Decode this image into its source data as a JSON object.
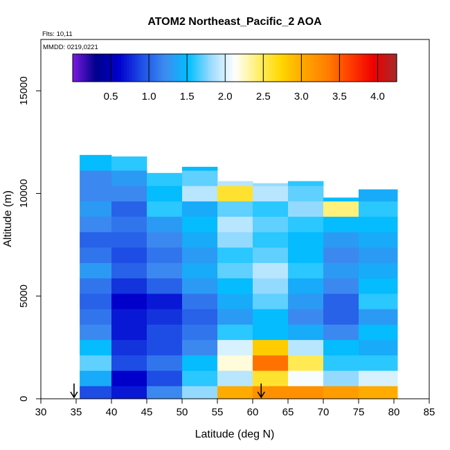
{
  "chart_data": {
    "type": "heatmap",
    "title": "ATOM2 Northeast_Pacific_2 AOA",
    "annotations": {
      "flights": "Flts: 10,11",
      "dates": "MMDD: 0219,0221"
    },
    "xlabel": "Latitude (deg N)",
    "ylabel": "Altitude (m)",
    "xlim": [
      30,
      85
    ],
    "ylim": [
      0,
      17500
    ],
    "x_ticks": [
      30,
      35,
      40,
      45,
      50,
      55,
      60,
      65,
      70,
      75,
      80,
      85
    ],
    "y_ticks": [
      0,
      5000,
      10000,
      15000
    ],
    "colorbar": {
      "range": [
        0,
        4.25
      ],
      "ticks": [
        0.5,
        1.0,
        1.5,
        2.0,
        2.5,
        3.0,
        3.5,
        4.0
      ],
      "tick_labels": [
        "0.5",
        "1.0",
        "1.5",
        "2.0",
        "2.5",
        "3.0",
        "3.5",
        "4.0"
      ],
      "colors": [
        "#7a1be0",
        "#00008b",
        "#0000cd",
        "#1e50e6",
        "#3c8cf0",
        "#00bfff",
        "#9fdcff",
        "#ffffff",
        "#fff06e",
        "#ffd700",
        "#ffa500",
        "#ff7f00",
        "#ff3c00",
        "#ee0000",
        "#a52a2a"
      ]
    },
    "bins": {
      "lat_edges": [
        35.5,
        40,
        45,
        50,
        55,
        60,
        65,
        70,
        75,
        80.5
      ],
      "alt_centers": [
        250,
        1000,
        1750,
        2500,
        3250,
        4000,
        4750,
        5500,
        6250,
        7000,
        7750,
        8500,
        9250,
        10000,
        10750,
        11500
      ],
      "top_altitude_by_lat_bin": [
        12000,
        11800,
        11000,
        11300,
        10600,
        10500,
        10600,
        9800,
        10200
      ],
      "aoa_values": [
        [
          0.9,
          0.7,
          1.2,
          1.8,
          3.0,
          3.2,
          3.2,
          3.1,
          3.0
        ],
        [
          1.4,
          0.6,
          0.9,
          1.6,
          1.9,
          2.6,
          2.1,
          1.8,
          2.0
        ],
        [
          1.7,
          0.9,
          1.1,
          1.5,
          2.2,
          3.4,
          2.5,
          1.6,
          1.6
        ],
        [
          1.5,
          0.8,
          0.9,
          1.2,
          2.0,
          2.8,
          1.9,
          1.5,
          1.4
        ],
        [
          1.2,
          0.7,
          0.9,
          1.1,
          1.6,
          1.5,
          1.4,
          1.2,
          1.5
        ],
        [
          1.1,
          0.7,
          0.8,
          1.0,
          1.3,
          1.5,
          1.2,
          1.0,
          1.3
        ],
        [
          1.0,
          0.6,
          0.7,
          1.1,
          1.4,
          1.7,
          1.3,
          1.0,
          1.6
        ],
        [
          1.1,
          0.8,
          1.0,
          1.3,
          1.5,
          1.8,
          1.4,
          1.2,
          1.5
        ],
        [
          1.3,
          1.0,
          1.2,
          1.4,
          1.7,
          1.9,
          1.6,
          1.3,
          1.4
        ],
        [
          1.1,
          0.9,
          1.1,
          1.3,
          1.6,
          1.7,
          1.5,
          1.2,
          1.3
        ],
        [
          1.0,
          1.0,
          1.2,
          1.4,
          1.8,
          1.6,
          1.5,
          1.3,
          1.4
        ],
        [
          1.2,
          1.1,
          1.3,
          1.5,
          1.9,
          1.7,
          1.6,
          1.5,
          1.5
        ],
        [
          1.3,
          1.0,
          1.6,
          1.4,
          1.7,
          1.6,
          1.8,
          2.4,
          1.6
        ],
        [
          1.2,
          1.2,
          1.5,
          1.9,
          2.6,
          1.9,
          1.7,
          1.5,
          1.4
        ],
        [
          1.2,
          1.3,
          1.6,
          1.7,
          1.9,
          1.8,
          1.6,
          1.5,
          1.5
        ],
        [
          1.5,
          1.6,
          1.5,
          1.5,
          1.5,
          1.5,
          1.5,
          1.5,
          1.5
        ]
      ]
    },
    "markers": [
      {
        "label": "arrow",
        "latitude": 34.7,
        "altitude": 0
      },
      {
        "label": "arrow",
        "latitude": 61.2,
        "altitude": 0
      }
    ],
    "grid": false,
    "legend": "colorbar top"
  }
}
